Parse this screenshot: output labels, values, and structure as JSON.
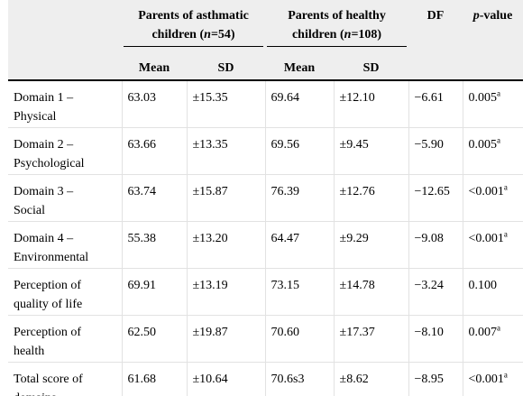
{
  "header": {
    "group1": "Parents of asthmatic children (n=54)",
    "group1_line1": "Parents of asthmatic",
    "group1_line2_pre": "children (",
    "group1_line2_n": "n",
    "group1_line2_post": "=54)",
    "group2_line1": "Parents of healthy",
    "group2_line2_pre": "children (",
    "group2_line2_n": "n",
    "group2_line2_post": "=108)",
    "df": "DF",
    "p_pre": "p",
    "p_post": "-value",
    "mean": "Mean",
    "sd": "SD"
  },
  "rows": [
    {
      "label_1": "Domain 1 –",
      "label_2": "Physical",
      "mean1": "63.03",
      "sd1": "±15.35",
      "mean2": "69.64",
      "sd2": "±12.10",
      "df": "−6.61",
      "p": "0.005",
      "sup": "a"
    },
    {
      "label_1": "Domain 2 –",
      "label_2": "Psychological",
      "mean1": "63.66",
      "sd1": "±13.35",
      "mean2": "69.56",
      "sd2": "±9.45",
      "df": "−5.90",
      "p": "0.005",
      "sup": "a"
    },
    {
      "label_1": "Domain 3 –",
      "label_2": "Social",
      "mean1": "63.74",
      "sd1": "±15.87",
      "mean2": "76.39",
      "sd2": "±12.76",
      "df": "−12.65",
      "p": "<0.001",
      "sup": "a"
    },
    {
      "label_1": "Domain 4 –",
      "label_2": "Environmental",
      "mean1": "55.38",
      "sd1": "±13.20",
      "mean2": "64.47",
      "sd2": "±9.29",
      "df": "−9.08",
      "p": "<0.001",
      "sup": "a"
    },
    {
      "label_1": "Perception of",
      "label_2": "quality of life",
      "mean1": "69.91",
      "sd1": "±13.19",
      "mean2": "73.15",
      "sd2": "±14.78",
      "df": "−3.24",
      "p": "0.100",
      "sup": ""
    },
    {
      "label_1": "Perception of",
      "label_2": "health",
      "mean1": "62.50",
      "sd1": "±19.87",
      "mean2": "70.60",
      "sd2": "±17.37",
      "df": "−8.10",
      "p": "0.007",
      "sup": "a"
    },
    {
      "label_1": "Total score of",
      "label_2": "domains",
      "mean1": "61.68",
      "sd1": "±10.64",
      "mean2": "70.6s3",
      "sd2": "±8.62",
      "df": "−8.95",
      "p": "<0.001",
      "sup": "a"
    }
  ]
}
